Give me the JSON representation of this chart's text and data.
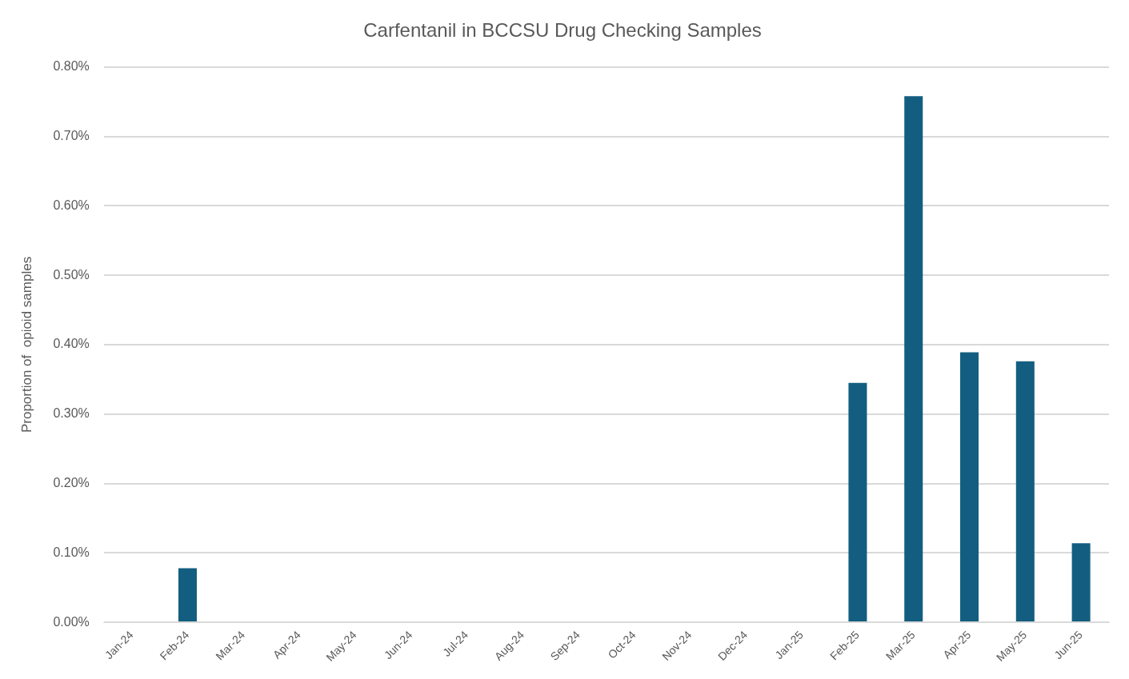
{
  "chart_data": {
    "type": "bar",
    "title": "Carfentanil in BCCSU Drug Checking Samples",
    "ylabel": "Proportion of  opioid samples",
    "categories": [
      "Jan-24",
      "Feb-24",
      "Mar-24",
      "Apr-24",
      "May-24",
      "Jun-24",
      "Jul-24",
      "Aug-24",
      "Sep-24",
      "Oct-24",
      "Nov-24",
      "Dec-24",
      "Jan-25",
      "Feb-25",
      "Mar-25",
      "Apr-25",
      "May-25",
      "Jun-25"
    ],
    "values": [
      0,
      0.078,
      0,
      0,
      0,
      0,
      0,
      0,
      0,
      0,
      0,
      0,
      0,
      0.345,
      0.758,
      0.389,
      0.376,
      0.114
    ],
    "color": "#135e80",
    "ylim": [
      0,
      0.8
    ],
    "yticks": [
      {
        "value": 0,
        "label": "0.00%"
      },
      {
        "value": 0.1,
        "label": "0.10%"
      },
      {
        "value": 0.2,
        "label": "0.20%"
      },
      {
        "value": 0.3,
        "label": "0.30%"
      },
      {
        "value": 0.4,
        "label": "0.40%"
      },
      {
        "value": 0.5,
        "label": "0.50%"
      },
      {
        "value": 0.6,
        "label": "0.60%"
      },
      {
        "value": 0.7,
        "label": "0.70%"
      },
      {
        "value": 0.8,
        "label": "0.80%"
      }
    ],
    "grid": "y"
  }
}
